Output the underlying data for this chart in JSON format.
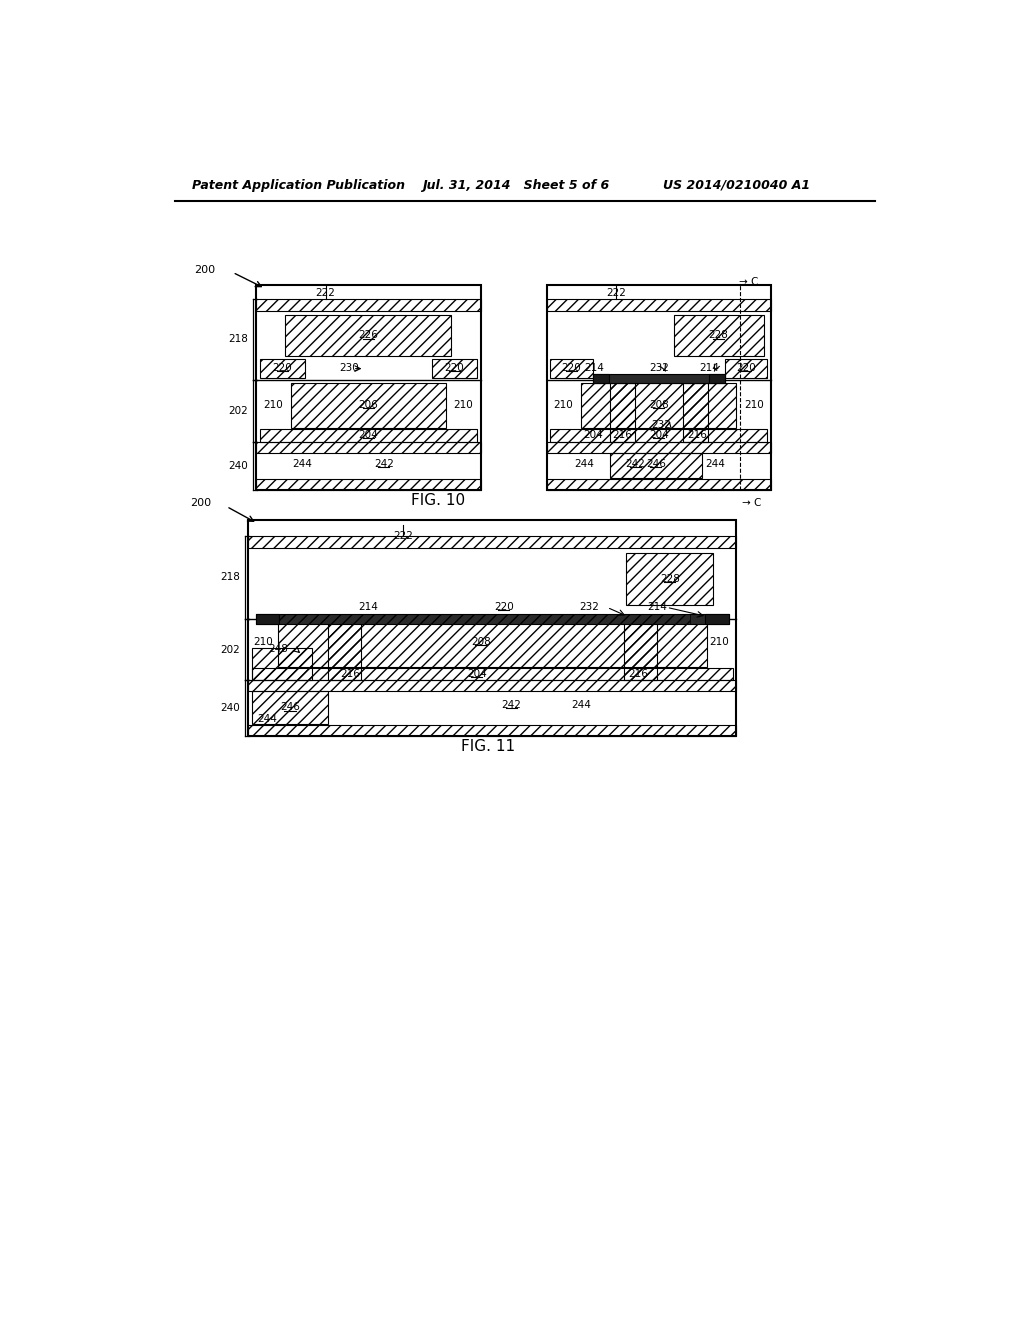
{
  "header_left": "Patent Application Publication",
  "header_mid": "Jul. 31, 2014   Sheet 5 of 6",
  "header_right": "US 2014/0210040 A1",
  "fig10_label": "FIG. 10",
  "fig11_label": "FIG. 11",
  "bg_color": "#ffffff"
}
